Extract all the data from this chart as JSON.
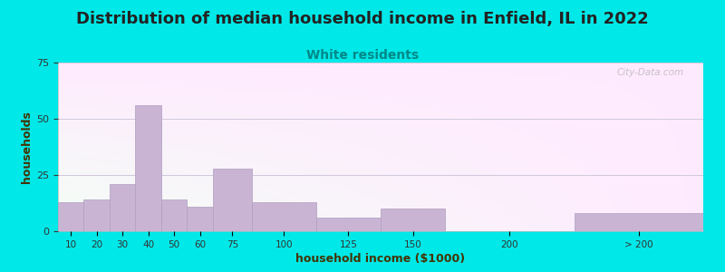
{
  "title": "Distribution of median household income in Enfield, IL in 2022",
  "subtitle": "White residents",
  "xlabel": "household income ($1000)",
  "ylabel": "households",
  "title_fontsize": 13,
  "subtitle_fontsize": 10,
  "subtitle_color": "#008888",
  "title_color": "#222222",
  "bar_color": "#c9b4d4",
  "bar_edge_color": "#b09ec0",
  "background_outer": "#00e8e8",
  "plot_bg_color_topleft": "#d8ecd0",
  "plot_bg_color_right": "#f5f0f8",
  "ylim": [
    0,
    75
  ],
  "yticks": [
    0,
    25,
    50,
    75
  ],
  "categories": [
    "10",
    "20",
    "30",
    "40",
    "50",
    "60",
    "75",
    "100",
    "125",
    "150",
    "200",
    "> 200"
  ],
  "values": [
    13,
    14,
    21,
    56,
    14,
    11,
    28,
    13,
    6,
    10,
    0,
    8
  ],
  "watermark": "City-Data.com",
  "grid_color": "#d0c8dc",
  "xlabel_color": "#444400",
  "ylabel_color": "#444400"
}
